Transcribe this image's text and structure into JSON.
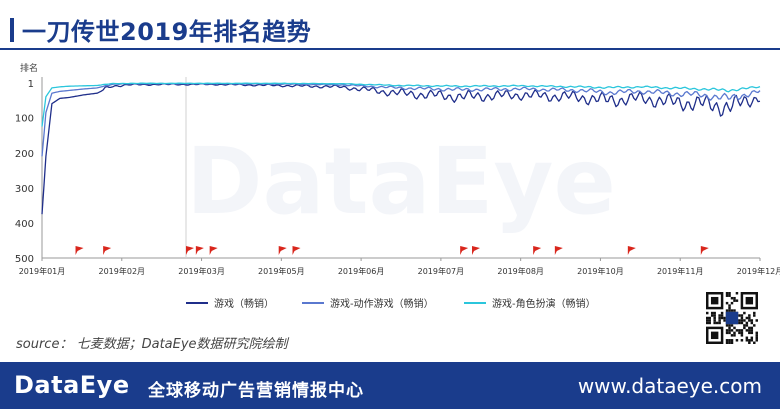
{
  "header": {
    "title": "一刀传世2019年排名趋势"
  },
  "chart_data": {
    "type": "line",
    "title": "一刀传世2019年排名趋势",
    "ylabel": "排名",
    "y_inverted": true,
    "ylim": [
      1,
      500
    ],
    "yticks": [
      "1",
      "100",
      "200",
      "300",
      "400",
      "500"
    ],
    "xticks": [
      "2019年01月",
      "2019年02月",
      "2019年03月",
      "2019年05月",
      "2019年06月",
      "2019年07月",
      "2019年08月",
      "2019年10月",
      "2019年11月",
      "2019年12月"
    ],
    "x_range": [
      "2019-01-01",
      "2019-12-31"
    ],
    "grid": false,
    "legend_position": "bottom",
    "event_flag_dates": [
      "2019-01-18",
      "2019-02-01",
      "2019-03-15",
      "2019-03-20",
      "2019-03-27",
      "2019-05-01",
      "2019-05-08",
      "2019-08-01",
      "2019-08-07",
      "2019-09-07",
      "2019-09-18",
      "2019-10-25",
      "2019-12-01"
    ],
    "watermark": "DataEye",
    "colors": {
      "line_primary": "#1f2e8a",
      "line_secondary": "#5a78cf",
      "line_tertiary": "#2bc6dc",
      "flag": "#d9261c"
    },
    "series": [
      {
        "name": "游戏（畅销）",
        "x": [
          "2019-01-01",
          "2019-01-03",
          "2019-01-06",
          "2019-01-10",
          "2019-01-15",
          "2019-01-22",
          "2019-01-29",
          "2019-02-05",
          "2019-02-15",
          "2019-03-01",
          "2019-04-01",
          "2019-05-01",
          "2019-06-01",
          "2019-07-01",
          "2019-08-01",
          "2019-09-01",
          "2019-10-01",
          "2019-10-15",
          "2019-11-01",
          "2019-11-15",
          "2019-12-01",
          "2019-12-15",
          "2019-12-31"
        ],
        "values": [
          375,
          210,
          60,
          45,
          42,
          35,
          30,
          10,
          6,
          5,
          5,
          8,
          12,
          30,
          40,
          35,
          42,
          50,
          45,
          55,
          60,
          70,
          40
        ]
      },
      {
        "name": "游戏-动作游戏（畅销）",
        "x": [
          "2019-01-01",
          "2019-01-03",
          "2019-01-06",
          "2019-01-10",
          "2019-01-15",
          "2019-01-22",
          "2019-01-29",
          "2019-02-05",
          "2019-02-15",
          "2019-03-01",
          "2019-04-01",
          "2019-05-01",
          "2019-06-01",
          "2019-07-01",
          "2019-08-01",
          "2019-09-01",
          "2019-10-01",
          "2019-10-15",
          "2019-11-01",
          "2019-11-15",
          "2019-12-01",
          "2019-12-15",
          "2019-12-31"
        ],
        "values": [
          210,
          85,
          30,
          25,
          22,
          18,
          15,
          5,
          3,
          3,
          3,
          4,
          6,
          15,
          20,
          18,
          22,
          28,
          25,
          30,
          35,
          45,
          25
        ]
      },
      {
        "name": "游戏-角色扮演（畅销）",
        "x": [
          "2019-01-01",
          "2019-01-03",
          "2019-01-06",
          "2019-01-10",
          "2019-01-15",
          "2019-01-22",
          "2019-01-29",
          "2019-02-05",
          "2019-02-15",
          "2019-03-01",
          "2019-04-01",
          "2019-05-01",
          "2019-06-01",
          "2019-07-01",
          "2019-08-01",
          "2019-09-01",
          "2019-10-01",
          "2019-10-15",
          "2019-11-01",
          "2019-11-15",
          "2019-12-01",
          "2019-12-15",
          "2019-12-31"
        ],
        "values": [
          125,
          40,
          15,
          12,
          10,
          9,
          8,
          3,
          2,
          2,
          2,
          2,
          3,
          8,
          10,
          9,
          12,
          14,
          12,
          15,
          18,
          22,
          12
        ]
      }
    ]
  },
  "source_text": "source： 七麦数据；DataEye数据研究院绘制",
  "footer": {
    "logo": "DataEye",
    "slogan": "全球移动广告营销情报中心",
    "url": "www.dataeye.com"
  }
}
